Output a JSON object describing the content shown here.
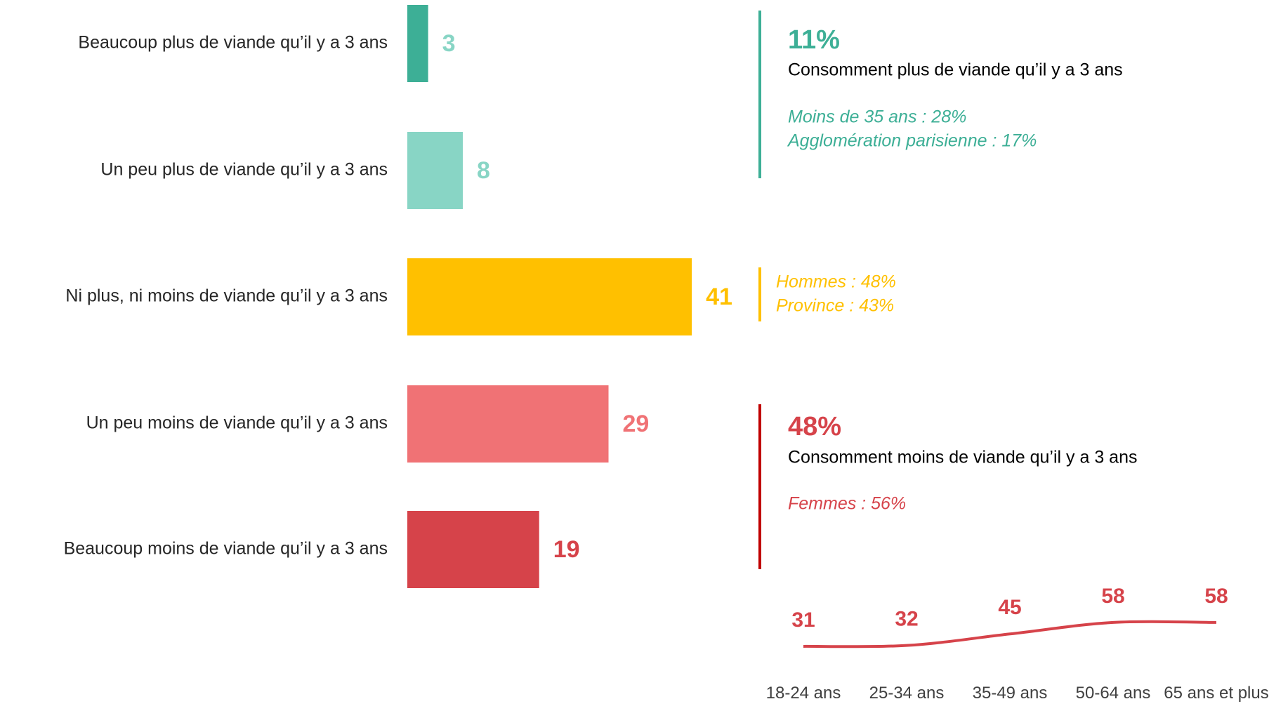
{
  "chart_data": [
    {
      "type": "bar",
      "orientation": "horizontal",
      "categories": [
        "Beaucoup plus de viande qu’il y a 3 ans",
        "Un peu plus de viande qu’il y a 3 ans",
        "Ni plus, ni moins de viande qu’il y a 3 ans",
        "Un peu moins de viande qu’il y a 3 ans",
        "Beaucoup moins de viande qu’il y a 3 ans"
      ],
      "values": [
        3,
        8,
        41,
        29,
        19
      ],
      "colors": [
        "#3daf96",
        "#88d5c5",
        "#ffc000",
        "#f07275",
        "#d6434a"
      ],
      "label_colors": [
        "#88d5c5",
        "#88d5c5",
        "#ffc000",
        "#f07275",
        "#d6434a"
      ],
      "xlim": [
        0,
        50
      ],
      "annotations": [
        {
          "headline": "11%",
          "text": "Consomment plus de viande qu’il y a 3 ans",
          "details": [
            "Moins de 35 ans : 28%",
            "Agglomération parisienne : 17%"
          ],
          "color": "#3daf96",
          "line_color": "#3daf96"
        },
        {
          "details": [
            "Hommes : 48%",
            "Province : 43%"
          ],
          "color": "#ffc000",
          "line_color": "#ffc000"
        },
        {
          "headline": "48%",
          "text": "Consomment moins de viande qu’il y a 3 ans",
          "details": [
            "Femmes : 56%"
          ],
          "color": "#d6434a",
          "line_color": "#c00000"
        }
      ]
    },
    {
      "type": "line",
      "categories": [
        "18-24 ans",
        "25-34 ans",
        "35-49 ans",
        "50-64 ans",
        "65 ans et plus"
      ],
      "values": [
        31,
        32,
        45,
        58,
        58
      ],
      "color": "#d6434a",
      "ylim": [
        0,
        100
      ]
    }
  ]
}
